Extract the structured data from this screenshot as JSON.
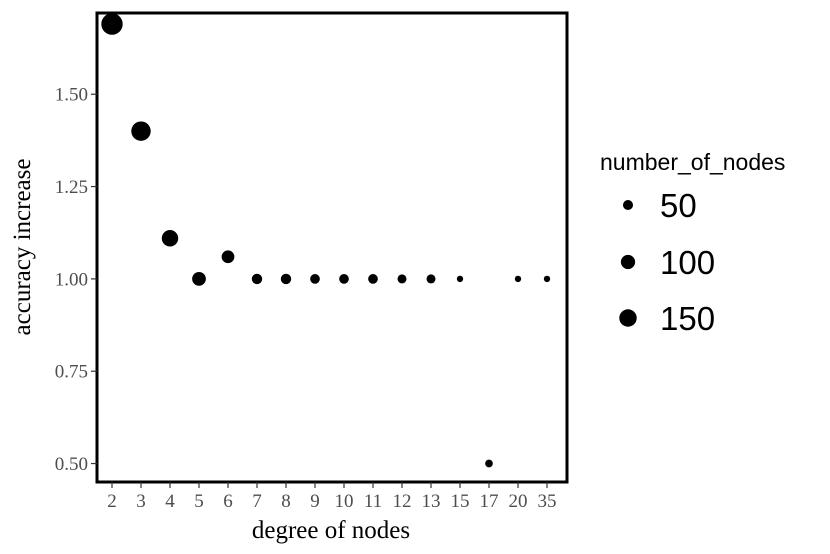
{
  "chart_data": {
    "type": "scatter",
    "xlabel": "degree of nodes",
    "ylabel": "accuracy increase",
    "x_type": "categorical",
    "categories": [
      "2",
      "3",
      "4",
      "5",
      "6",
      "7",
      "8",
      "9",
      "10",
      "11",
      "12",
      "13",
      "15",
      "17",
      "20",
      "35"
    ],
    "ylim": [
      0.45,
      1.72
    ],
    "yticks": [
      0.5,
      0.75,
      1.0,
      1.25,
      1.5
    ],
    "ytick_labels": [
      "0.50",
      "0.75",
      "1.00",
      "1.25",
      "1.50"
    ],
    "grid": false,
    "legend_position": "right",
    "size_legend": {
      "title": "number_of_nodes",
      "entries": [
        {
          "label": "50",
          "value": 50
        },
        {
          "label": "100",
          "value": 100
        },
        {
          "label": "150",
          "value": 150
        }
      ]
    },
    "points": [
      {
        "x": "2",
        "y": 1.69,
        "size": 170
      },
      {
        "x": "3",
        "y": 1.4,
        "size": 140
      },
      {
        "x": "4",
        "y": 1.11,
        "size": 100
      },
      {
        "x": "5",
        "y": 1.0,
        "size": 70
      },
      {
        "x": "6",
        "y": 1.06,
        "size": 60
      },
      {
        "x": "7",
        "y": 1.0,
        "size": 40
      },
      {
        "x": "8",
        "y": 1.0,
        "size": 40
      },
      {
        "x": "9",
        "y": 1.0,
        "size": 35
      },
      {
        "x": "10",
        "y": 1.0,
        "size": 35
      },
      {
        "x": "11",
        "y": 1.0,
        "size": 35
      },
      {
        "x": "12",
        "y": 1.0,
        "size": 30
      },
      {
        "x": "13",
        "y": 1.0,
        "size": 30
      },
      {
        "x": "15",
        "y": 1.0,
        "size": 15
      },
      {
        "x": "17",
        "y": 0.5,
        "size": 22
      },
      {
        "x": "20",
        "y": 1.0,
        "size": 15
      },
      {
        "x": "35",
        "y": 1.0,
        "size": 15
      }
    ]
  }
}
